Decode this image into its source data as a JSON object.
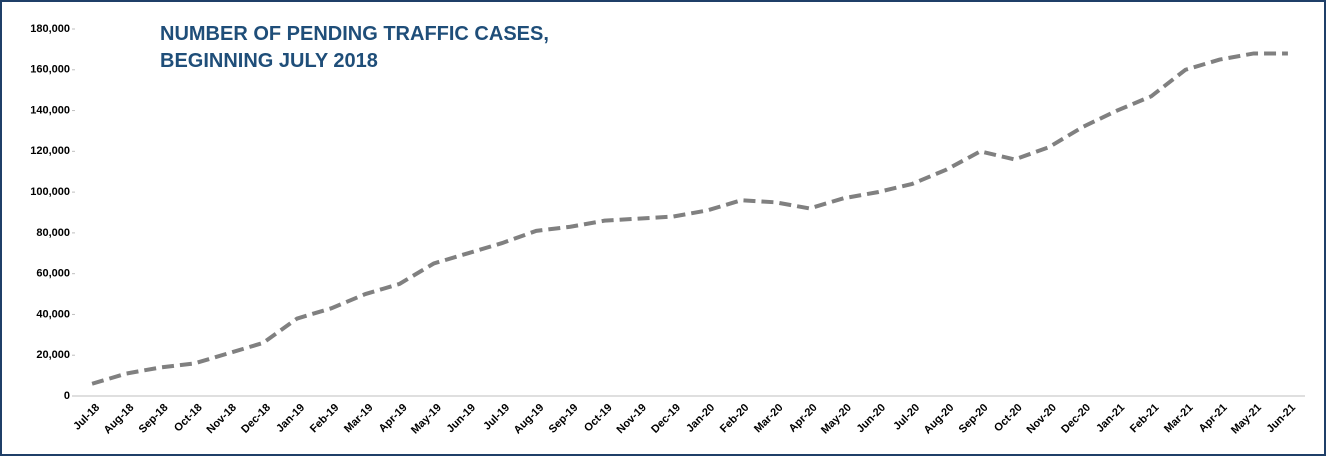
{
  "chart_data": {
    "type": "line",
    "title": [
      "NUMBER OF PENDING TRAFFIC CASES,",
      "BEGINNING JULY 2018"
    ],
    "categories": [
      "Jul-18",
      "Aug-18",
      "Sep-18",
      "Oct-18",
      "Nov-18",
      "Dec-18",
      "Jan-19",
      "Feb-19",
      "Mar-19",
      "Apr-19",
      "May-19",
      "Jun-19",
      "Jul-19",
      "Aug-19",
      "Sep-19",
      "Oct-19",
      "Nov-19",
      "Dec-19",
      "Jan-20",
      "Feb-20",
      "Mar-20",
      "Apr-20",
      "May-20",
      "Jun-20",
      "Jul-20",
      "Aug-20",
      "Sep-20",
      "Oct-20",
      "Nov-20",
      "Dec-20",
      "Jan-21",
      "Feb-21",
      "Mar-21",
      "Apr-21",
      "May-21",
      "Jun-21"
    ],
    "series": [
      {
        "color": "#808080",
        "values": [
          6000,
          11000,
          14000,
          16000,
          21000,
          26000,
          38000,
          43000,
          50000,
          55000,
          65000,
          70000,
          75000,
          81000,
          83000,
          86000,
          87000,
          88000,
          91000,
          96000,
          95000,
          92000,
          97000,
          100000,
          104000,
          111000,
          120000,
          116000,
          122000,
          132000,
          140000,
          147000,
          160000,
          165000,
          168000,
          168000
        ]
      }
    ],
    "ylim": [
      0,
      180000
    ],
    "yticks": [
      0,
      {
        "value": 20000,
        "label": "20,000"
      },
      {
        "value": 40000,
        "label": "40,000"
      },
      {
        "value": 60000,
        "label": "60,000"
      },
      {
        "value": 80000,
        "label": "80,000"
      },
      {
        "value": 100000,
        "label": "100,000"
      },
      {
        "value": 120000,
        "label": "120,000"
      },
      {
        "value": 140000,
        "label": "140,000"
      },
      {
        "value": 160000,
        "label": "160,000"
      },
      {
        "value": 180000,
        "label": "180,000"
      }
    ]
  }
}
